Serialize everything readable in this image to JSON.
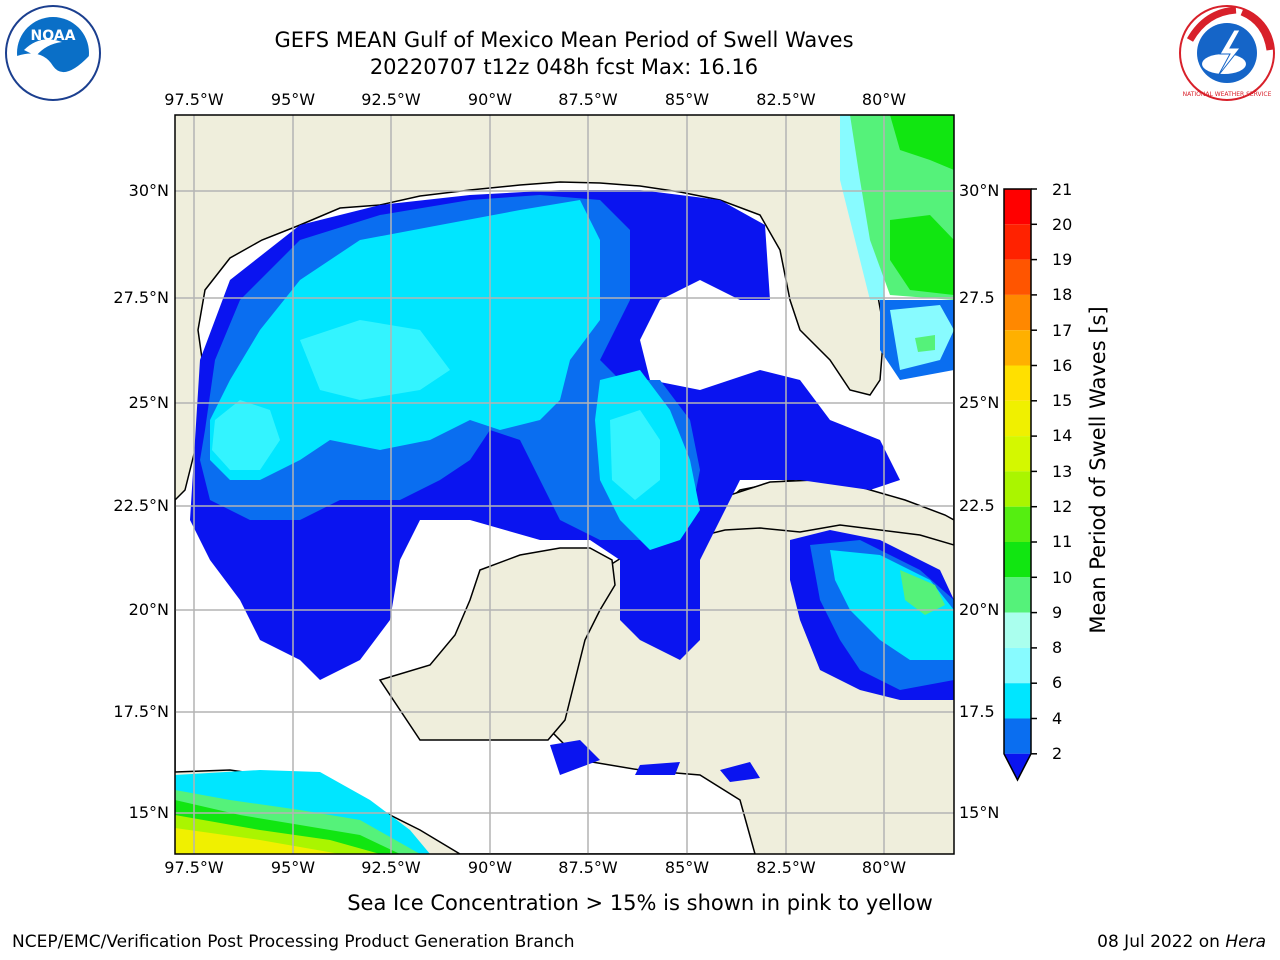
{
  "header": {
    "title_line1": "GEFS MEAN Gulf of Mexico Mean Period of Swell Waves",
    "title_line2": "20220707 t12z 048h fcst   Max: 16.16"
  },
  "map": {
    "lon_ticks": [
      "97.5°W",
      "95°W",
      "92.5°W",
      "90°W",
      "87.5°W",
      "85°W",
      "82.5°W",
      "80°W"
    ],
    "lat_ticks_left": [
      "30°N",
      "27.5°N",
      "25°N",
      "22.5°N",
      "20°N",
      "17.5°N",
      "15°N"
    ],
    "lat_ticks_right": [
      "30°N",
      "27.5",
      "25°N",
      "22.5",
      "20°N",
      "17.5",
      "15°N"
    ],
    "colors": {
      "land": "#efeedc",
      "ocean_nodata": "#ffffff",
      "grid": "#b4b4b4"
    }
  },
  "colorbar": {
    "label": "Mean Period of Swell Waves [s]",
    "ticks": [
      "2",
      "4",
      "6",
      "8",
      "9",
      "10",
      "11",
      "12",
      "13",
      "14",
      "15",
      "16",
      "17",
      "18",
      "19",
      "20",
      "21"
    ],
    "colors": [
      "#0a14f0",
      "#0a6ef0",
      "#00e6ff",
      "#33f4ff",
      "#88fbff",
      "#aaffee",
      "#55f27a",
      "#11e611",
      "#55ee11",
      "#aaf500",
      "#d4f800",
      "#f0f000",
      "#ffe000",
      "#ffb000",
      "#ff8800",
      "#ff5500",
      "#ff2200",
      "#ff0000"
    ]
  },
  "caption": "Sea Ice Concentration > 15% is shown in pink to yellow",
  "footer": {
    "left": "NCEP/EMC/Verification Post Processing Product Generation Branch",
    "right_date": "08 Jul 2022 on ",
    "right_host": "Hera"
  },
  "logos": {
    "left": "NOAA",
    "right": "NATIONAL WEATHER SERVICE"
  }
}
